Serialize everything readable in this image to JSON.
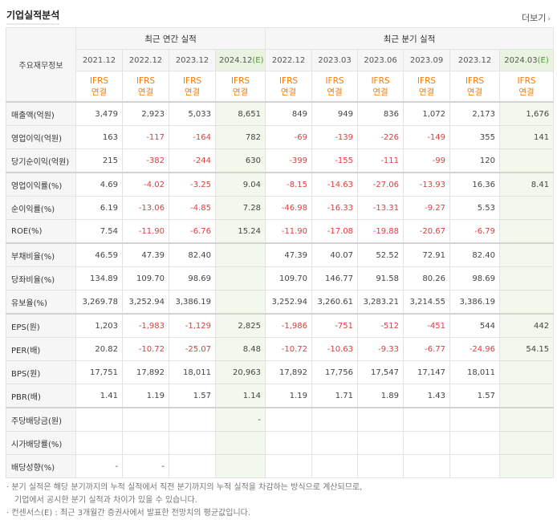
{
  "title": "기업실적분석",
  "more_label": "더보기",
  "table": {
    "corner_label": "주요재무정보",
    "annual_group": "최근 연간 실적",
    "quarter_group": "최근 분기 실적",
    "periods": [
      {
        "label": "2021.12",
        "est": false
      },
      {
        "label": "2022.12",
        "est": false
      },
      {
        "label": "2023.12",
        "est": false
      },
      {
        "label": "2024.12",
        "est": true,
        "est_mark": "(E)"
      },
      {
        "label": "2022.12",
        "est": false
      },
      {
        "label": "2023.03",
        "est": false
      },
      {
        "label": "2023.06",
        "est": false
      },
      {
        "label": "2023.09",
        "est": false
      },
      {
        "label": "2023.12",
        "est": false
      },
      {
        "label": "2024.03",
        "est": true,
        "est_mark": "(E)"
      }
    ],
    "standard_line1": "IFRS",
    "standard_line2": "연결",
    "rows": [
      {
        "label": "매출액(억원)",
        "values": [
          "3,479",
          "2,923",
          "5,033",
          "8,651",
          "849",
          "949",
          "836",
          "1,072",
          "2,173",
          "1,676"
        ]
      },
      {
        "label": "영업이익(억원)",
        "values": [
          "163",
          "-117",
          "-164",
          "782",
          "-69",
          "-139",
          "-226",
          "-149",
          "355",
          "141"
        ]
      },
      {
        "label": "당기순이익(억원)",
        "values": [
          "215",
          "-382",
          "-244",
          "630",
          "-399",
          "-155",
          "-111",
          "-99",
          "120",
          ""
        ]
      },
      {
        "label": "영업이익률(%)",
        "values": [
          "4.69",
          "-4.02",
          "-3.25",
          "9.04",
          "-8.15",
          "-14.63",
          "-27.06",
          "-13.93",
          "16.36",
          "8.41"
        ]
      },
      {
        "label": "순이익률(%)",
        "values": [
          "6.19",
          "-13.06",
          "-4.85",
          "7.28",
          "-46.98",
          "-16.33",
          "-13.31",
          "-9.27",
          "5.53",
          ""
        ]
      },
      {
        "label": "ROE(%)",
        "values": [
          "7.54",
          "-11.90",
          "-6.76",
          "15.24",
          "-11.90",
          "-17.08",
          "-19.88",
          "-20.67",
          "-6.79",
          ""
        ]
      },
      {
        "label": "부채비율(%)",
        "values": [
          "46.59",
          "47.39",
          "82.40",
          "",
          "47.39",
          "40.07",
          "52.52",
          "72.91",
          "82.40",
          ""
        ]
      },
      {
        "label": "당좌비율(%)",
        "values": [
          "134.89",
          "109.70",
          "98.69",
          "",
          "109.70",
          "146.77",
          "91.58",
          "80.26",
          "98.69",
          ""
        ]
      },
      {
        "label": "유보율(%)",
        "values": [
          "3,269.78",
          "3,252.94",
          "3,386.19",
          "",
          "3,252.94",
          "3,260.61",
          "3,283.21",
          "3,214.55",
          "3,386.19",
          ""
        ]
      },
      {
        "label": "EPS(원)",
        "values": [
          "1,203",
          "-1,983",
          "-1,129",
          "2,825",
          "-1,986",
          "-751",
          "-512",
          "-451",
          "544",
          "442"
        ]
      },
      {
        "label": "PER(배)",
        "values": [
          "20.82",
          "-10.72",
          "-25.07",
          "8.48",
          "-10.72",
          "-10.63",
          "-9.33",
          "-6.77",
          "-24.96",
          "54.15"
        ]
      },
      {
        "label": "BPS(원)",
        "values": [
          "17,751",
          "17,892",
          "18,011",
          "20,963",
          "17,892",
          "17,756",
          "17,547",
          "17,147",
          "18,011",
          ""
        ]
      },
      {
        "label": "PBR(배)",
        "values": [
          "1.41",
          "1.19",
          "1.57",
          "1.14",
          "1.19",
          "1.71",
          "1.89",
          "1.43",
          "1.57",
          ""
        ]
      },
      {
        "label": "주당배당금(원)",
        "values": [
          "",
          "",
          "",
          "-",
          "",
          "",
          "",
          "",
          "",
          ""
        ]
      },
      {
        "label": "시가배당률(%)",
        "values": [
          "",
          "",
          "",
          "",
          "",
          "",
          "",
          "",
          "",
          ""
        ]
      },
      {
        "label": "배당성향(%)",
        "values": [
          "-",
          "-",
          "",
          "",
          "",
          "",
          "",
          "",
          "",
          ""
        ]
      }
    ]
  },
  "notes": [
    {
      "text": "· 분기 실적은 해당 분기까지의 누적 실적에서 직전 분기까지의 누적 실적을 차감하는 방식으로 계산되므로,",
      "indent": false
    },
    {
      "text": "기업에서 공시한 분기 실적과 차이가 있을 수 있습니다.",
      "indent": true
    },
    {
      "text": "· 컨센서스(E) : 최근 3개월간 증권사에서 발표한 전망치의 평균값입니다.",
      "indent": false
    }
  ]
}
